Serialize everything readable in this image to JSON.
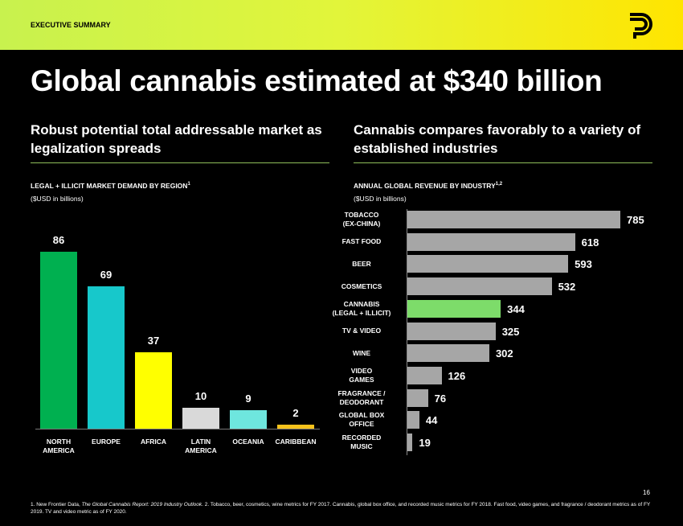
{
  "header": "EXECUTIVE SUMMARY",
  "title": "Global cannabis estimated at $340 billion",
  "page_number": "16",
  "footnote": [
    "1. New Frontier Data, ",
    "The Global Cannabis Report: 2019 Industry Outlook",
    ". 2. Tobacco, beer, cosmetics, wine metrics for FY 2017. Cannabis, global box office, and recorded music metrics for FY 2018. Fast food, video games, and fragrance / deodorant metrics as of FY 2019. TV and video metric as of FY 2020."
  ],
  "chart_data": [
    {
      "type": "bar",
      "subtitle": "Robust potential total addressable market as legalization spreads",
      "title": "LEGAL + ILLICIT MARKET DEMAND BY REGION",
      "title_sup": "1",
      "unit": "($USD in billions)",
      "categories": [
        "NORTH\nAMERICA",
        "EUROPE",
        "AFRICA",
        "LATIN\nAMERICA",
        "OCEANIA",
        "CARIBBEAN"
      ],
      "values": [
        86,
        69,
        37,
        10,
        9,
        2
      ],
      "colors": [
        "#00b050",
        "#17c8cb",
        "#ffff00",
        "#d9d9d9",
        "#6ee6de",
        "#f5c21b"
      ]
    },
    {
      "type": "barh",
      "subtitle": "Cannabis compares favorably to a variety of established industries",
      "title": "ANNUAL GLOBAL REVENUE BY INDUSTRY",
      "title_sup": "1,2",
      "unit": "($USD in billions)",
      "categories": [
        "TOBACCO\n(EX-CHINA)",
        "FAST FOOD",
        "BEER",
        "COSMETICS",
        "CANNABIS\n(LEGAL + ILLICIT)",
        "TV & VIDEO",
        "WINE",
        "VIDEO\nGAMES",
        "FRAGRANCE /\nDEODORANT",
        "GLOBAL BOX\nOFFICE",
        "RECORDED\nMUSIC"
      ],
      "values": [
        785,
        618,
        593,
        532,
        344,
        325,
        302,
        126,
        76,
        44,
        19
      ],
      "colors": [
        "#a6a6a6",
        "#a6a6a6",
        "#a6a6a6",
        "#a6a6a6",
        "#7ddc6a",
        "#a6a6a6",
        "#a6a6a6",
        "#a6a6a6",
        "#a6a6a6",
        "#a6a6a6",
        "#a6a6a6"
      ]
    }
  ]
}
